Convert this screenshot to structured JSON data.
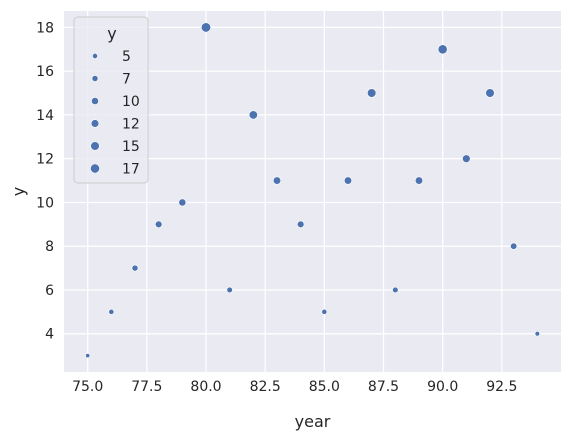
{
  "chart_data": {
    "type": "scatter",
    "xlabel": "year",
    "ylabel": "y",
    "xlim": [
      74,
      95
    ],
    "ylim": [
      2.25,
      18.75
    ],
    "xticks": [
      75.0,
      77.5,
      80.0,
      82.5,
      85.0,
      87.5,
      90.0,
      92.5
    ],
    "xtick_labels": [
      "75.0",
      "77.5",
      "80.0",
      "82.5",
      "85.0",
      "87.5",
      "90.0",
      "92.5"
    ],
    "yticks": [
      4,
      6,
      8,
      10,
      12,
      14,
      16,
      18
    ],
    "ytick_labels": [
      "4",
      "6",
      "8",
      "10",
      "12",
      "14",
      "16",
      "18"
    ],
    "grid": true,
    "marker_color": "#4c72b0",
    "background_color": "#eaeaf2",
    "grid_color": "#ffffff",
    "points": [
      {
        "x": 75,
        "y": 3
      },
      {
        "x": 76,
        "y": 5
      },
      {
        "x": 77,
        "y": 7
      },
      {
        "x": 78,
        "y": 9
      },
      {
        "x": 79,
        "y": 10
      },
      {
        "x": 80,
        "y": 18
      },
      {
        "x": 81,
        "y": 6
      },
      {
        "x": 82,
        "y": 14
      },
      {
        "x": 83,
        "y": 11
      },
      {
        "x": 84,
        "y": 9
      },
      {
        "x": 85,
        "y": 5
      },
      {
        "x": 86,
        "y": 11
      },
      {
        "x": 87,
        "y": 15
      },
      {
        "x": 88,
        "y": 6
      },
      {
        "x": 89,
        "y": 11
      },
      {
        "x": 90,
        "y": 17
      },
      {
        "x": 91,
        "y": 12
      },
      {
        "x": 92,
        "y": 15
      },
      {
        "x": 93,
        "y": 8
      },
      {
        "x": 94,
        "y": 4
      }
    ],
    "size_legend": {
      "title": "y",
      "placement": "top-left",
      "entries": [
        {
          "label": "5",
          "value": 5
        },
        {
          "label": "7",
          "value": 7
        },
        {
          "label": "10",
          "value": 10
        },
        {
          "label": "12",
          "value": 12
        },
        {
          "label": "15",
          "value": 15
        },
        {
          "label": "17",
          "value": 17
        }
      ]
    }
  }
}
